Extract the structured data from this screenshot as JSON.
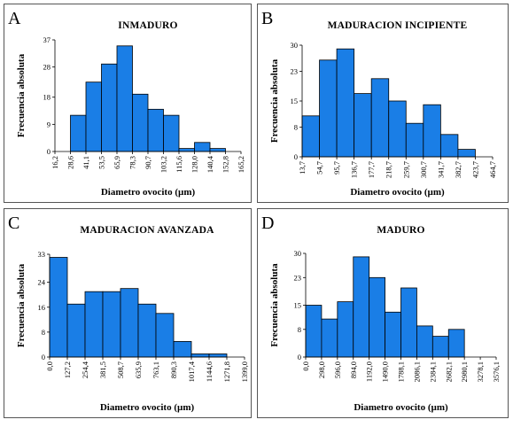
{
  "chart_data": [
    {
      "type": "bar",
      "panel_letter": "A",
      "title": "INMADURO",
      "xlabel": "Diametro ovocito (µm)",
      "ylabel": "Frecuencia absoluta",
      "x_ticks": [
        "16,2",
        "28,6",
        "41,1",
        "53,5",
        "65,9",
        "78,3",
        "90,7",
        "103,2",
        "115,6",
        "128,0",
        "140,4",
        "152,8",
        "165,2"
      ],
      "y_ticks": [
        "0",
        "9",
        "18",
        "28",
        "37"
      ],
      "ylim": [
        0,
        37
      ],
      "values": [
        0,
        12,
        23,
        29,
        35,
        19,
        14,
        12,
        1,
        3,
        1,
        0
      ]
    },
    {
      "type": "bar",
      "panel_letter": "B",
      "title": "MADURACION INCIPIENTE",
      "xlabel": "Diametro ovocito (µm)",
      "ylabel": "Frecuencia absoluta",
      "x_ticks": [
        "13,7",
        "54,7",
        "95,7",
        "136,7",
        "177,7",
        "218,7",
        "259,7",
        "300,7",
        "341,7",
        "382,7",
        "423,7",
        "464,7"
      ],
      "y_ticks": [
        "0",
        "8",
        "15",
        "23",
        "30"
      ],
      "ylim": [
        0,
        30
      ],
      "values": [
        11,
        26,
        29,
        17,
        21,
        15,
        9,
        14,
        6,
        2,
        0
      ]
    },
    {
      "type": "bar",
      "panel_letter": "C",
      "title": "MADURACION AVANZADA",
      "xlabel": "Diametro ovocito (µm)",
      "ylabel": "Frecuencia absoluta",
      "x_ticks": [
        "0,0",
        "127,2",
        "254,4",
        "381,5",
        "508,7",
        "635,9",
        "763,1",
        "890,3",
        "1017,4",
        "1144,6",
        "1271,8",
        "1399,0"
      ],
      "y_ticks": [
        "0",
        "8",
        "16",
        "24",
        "33"
      ],
      "ylim": [
        0,
        33
      ],
      "values": [
        32,
        17,
        21,
        21,
        22,
        17,
        14,
        5,
        1,
        1,
        0
      ]
    },
    {
      "type": "bar",
      "panel_letter": "D",
      "title": "MADURO",
      "xlabel": "Diametro ovocito (µm)",
      "ylabel": "Frecuencia absoluta",
      "x_ticks": [
        "0,0",
        "298,0",
        "596,0",
        "894,0",
        "1192,0",
        "1490,0",
        "1788,1",
        "2086,1",
        "2384,1",
        "2682,1",
        "2980,1",
        "3278,1",
        "3576,1"
      ],
      "y_ticks": [
        "0",
        "8",
        "15",
        "23",
        "30"
      ],
      "ylim": [
        0,
        30
      ],
      "values": [
        15,
        11,
        16,
        29,
        23,
        13,
        20,
        9,
        6,
        8,
        0,
        0
      ]
    }
  ],
  "colors": {
    "bar_fill": "#1a7ee6",
    "bar_stroke": "#000000"
  }
}
